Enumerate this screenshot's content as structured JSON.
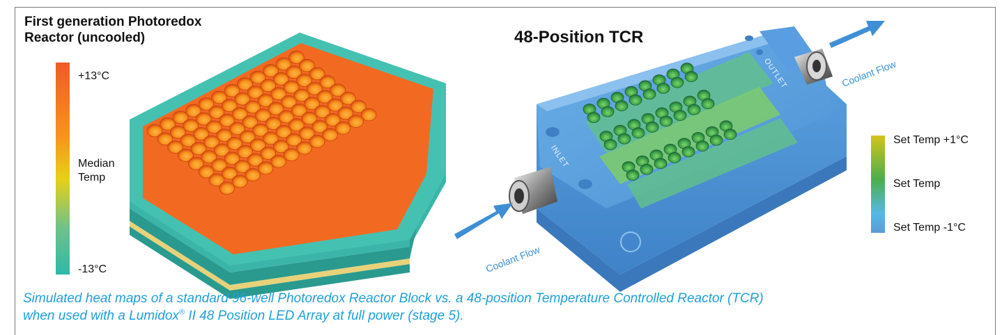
{
  "left_panel": {
    "title_line1": "First generation Photoredox",
    "title_line2": "Reactor (uncooled)",
    "scale": {
      "top": "+13°C",
      "middle_line1": "Median",
      "middle_line2": "Temp",
      "bottom": "-13°C",
      "colors": [
        "#f05a28",
        "#f7941d",
        "#e7d117",
        "#6fc28a",
        "#2fb9a8"
      ]
    }
  },
  "right_panel": {
    "title": "48-Position TCR",
    "labels": {
      "inlet": "INLET",
      "outlet": "OUTLET",
      "coolant_flow_in": "Coolant Flow",
      "coolant_flow_out": "Coolant Flow"
    },
    "scale": {
      "top": "Set Temp +1°C",
      "middle": "Set Temp",
      "bottom": "Set Temp -1°C",
      "colors": [
        "#d4c41a",
        "#4cae4c",
        "#55b9e6",
        "#5b9bd5"
      ]
    }
  },
  "caption": {
    "line1": "Simulated heat maps of a standard 96-well Photoredox Reactor Block vs. a 48-position Temperature Controlled Reactor (TCR)",
    "line2_pre": "when used with a Lumidox",
    "line2_reg": "®",
    "line2_post": " II 48 Position LED Array at full power (stage 5)."
  }
}
